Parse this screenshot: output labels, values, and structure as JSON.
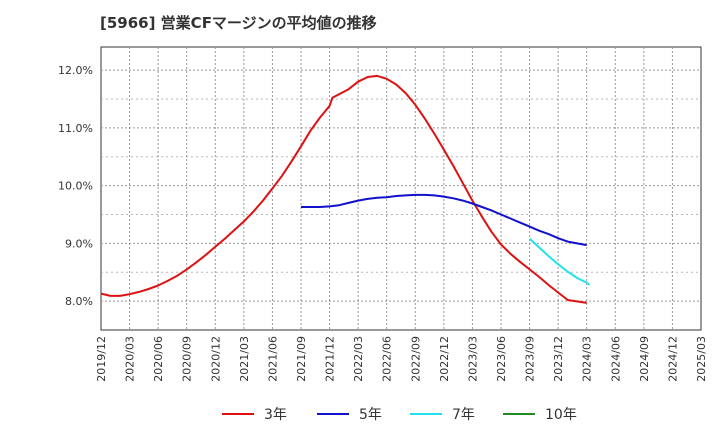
{
  "chart_data": {
    "type": "line",
    "title": "[5966]  営業CFマージンの平均値の推移",
    "xlabel": "",
    "ylabel": "",
    "ylim": [
      7.5,
      12.4
    ],
    "grid": true,
    "legend_position": "bottom",
    "x_categories": [
      "2019/12",
      "2020/03",
      "2020/06",
      "2020/09",
      "2020/12",
      "2021/03",
      "2021/06",
      "2021/09",
      "2021/12",
      "2022/03",
      "2022/06",
      "2022/09",
      "2022/12",
      "2023/03",
      "2023/06",
      "2023/09",
      "2023/12",
      "2024/03",
      "2024/06",
      "2024/09",
      "2024/12",
      "2025/03"
    ],
    "y_ticks": [
      "8.0%",
      "9.0%",
      "10.0%",
      "11.0%",
      "12.0%"
    ],
    "y_tick_values": [
      8.0,
      9.0,
      10.0,
      11.0,
      12.0
    ],
    "series": [
      {
        "name": "3年",
        "color": "#dd1111",
        "points": [
          [
            "2019/12",
            8.13
          ],
          [
            "2020/01",
            8.09
          ],
          [
            "2020/02",
            8.09
          ],
          [
            "2020/03",
            8.12
          ],
          [
            "2020/04",
            8.16
          ],
          [
            "2020/05",
            8.21
          ],
          [
            "2020/06",
            8.27
          ],
          [
            "2020/07",
            8.35
          ],
          [
            "2020/08",
            8.44
          ],
          [
            "2020/09",
            8.55
          ],
          [
            "2020/10",
            8.67
          ],
          [
            "2020/11",
            8.8
          ],
          [
            "2020/12",
            8.94
          ],
          [
            "2021/01",
            9.08
          ],
          [
            "2021/02",
            9.23
          ],
          [
            "2021/03",
            9.38
          ],
          [
            "2021/04",
            9.55
          ],
          [
            "2021/05",
            9.74
          ],
          [
            "2021/06",
            9.95
          ],
          [
            "2021/07",
            10.17
          ],
          [
            "2021/08",
            10.42
          ],
          [
            "2021/09",
            10.68
          ],
          [
            "2021/10",
            10.95
          ],
          [
            "2021/11",
            11.18
          ],
          [
            "2021/12",
            11.38
          ],
          [
            "2021/12b",
            11.52
          ],
          [
            "2022/02",
            11.67
          ],
          [
            "2022/03",
            11.8
          ],
          [
            "2022/04",
            11.88
          ],
          [
            "2022/05",
            11.9
          ],
          [
            "2022/06",
            11.85
          ],
          [
            "2022/07",
            11.75
          ],
          [
            "2022/08",
            11.6
          ],
          [
            "2022/09",
            11.4
          ],
          [
            "2022/10",
            11.16
          ],
          [
            "2022/11",
            10.9
          ],
          [
            "2022/12",
            10.62
          ],
          [
            "2023/01",
            10.34
          ],
          [
            "2023/02",
            10.04
          ],
          [
            "2023/03",
            9.74
          ],
          [
            "2023/04",
            9.46
          ],
          [
            "2023/05",
            9.2
          ],
          [
            "2023/06",
            8.98
          ],
          [
            "2023/07",
            8.82
          ],
          [
            "2023/08",
            8.68
          ],
          [
            "2023/09",
            8.55
          ],
          [
            "2023/10",
            8.42
          ],
          [
            "2023/11",
            8.28
          ],
          [
            "2023/12",
            8.15
          ],
          [
            "2024/01",
            8.02
          ],
          [
            "2024/03",
            7.97
          ]
        ]
      },
      {
        "name": "5年",
        "color": "#1111cc",
        "points": [
          [
            "2021/09",
            9.63
          ],
          [
            "2021/10",
            9.63
          ],
          [
            "2021/11",
            9.63
          ],
          [
            "2021/12",
            9.64
          ],
          [
            "2022/01",
            9.66
          ],
          [
            "2022/02",
            9.7
          ],
          [
            "2022/03",
            9.74
          ],
          [
            "2022/04",
            9.77
          ],
          [
            "2022/05",
            9.79
          ],
          [
            "2022/06",
            9.8
          ],
          [
            "2022/07",
            9.82
          ],
          [
            "2022/08",
            9.83
          ],
          [
            "2022/09",
            9.84
          ],
          [
            "2022/10",
            9.84
          ],
          [
            "2022/11",
            9.83
          ],
          [
            "2022/12",
            9.81
          ],
          [
            "2023/01",
            9.78
          ],
          [
            "2023/02",
            9.74
          ],
          [
            "2023/03",
            9.69
          ],
          [
            "2023/04",
            9.63
          ],
          [
            "2023/05",
            9.57
          ],
          [
            "2023/06",
            9.5
          ],
          [
            "2023/07",
            9.43
          ],
          [
            "2023/08",
            9.36
          ],
          [
            "2023/09",
            9.29
          ],
          [
            "2023/10",
            9.22
          ],
          [
            "2023/11",
            9.16
          ],
          [
            "2023/12",
            9.09
          ],
          [
            "2024/01",
            9.03
          ],
          [
            "2024/03",
            8.97
          ]
        ]
      },
      {
        "name": "7年",
        "color": "#22e0ee",
        "points": [
          [
            "2023/09",
            9.08
          ],
          [
            "2023/10",
            8.93
          ],
          [
            "2023/11",
            8.78
          ],
          [
            "2023/12",
            8.64
          ],
          [
            "2024/01",
            8.51
          ],
          [
            "2024/02",
            8.4
          ],
          [
            "2024/03",
            8.32
          ],
          [
            "2024/03b",
            8.28
          ]
        ]
      },
      {
        "name": "10年",
        "color": "#228822",
        "points": []
      }
    ]
  }
}
